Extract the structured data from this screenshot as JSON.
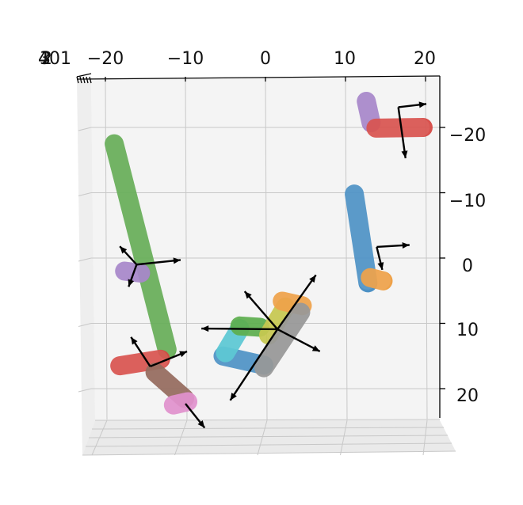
{
  "chart_data": {
    "type": "scatter",
    "projection": "3d",
    "title": "",
    "xlabel": "",
    "ylabel": "",
    "zlabel": "",
    "xlim": [
      -22,
      22
    ],
    "ylim": [
      -26,
      26
    ],
    "grid": true,
    "x_ticks": [
      "−20",
      "−10",
      "0",
      "10",
      "20"
    ],
    "y_ticks": [
      "−20",
      "−10",
      "0",
      "10",
      "20"
    ],
    "z_ticks_overlapping": [
      "4",
      "3",
      "2",
      "1",
      "0"
    ],
    "z_ticks_text": "401",
    "colors": {
      "green": "#5aa84a",
      "purple": "#a07cc6",
      "red": "#d64541",
      "brown": "#8c5e50",
      "pink": "#df88c9",
      "blue": "#3f89c2",
      "orange": "#ee9a3a",
      "cyan": "#4ec4d1",
      "olive": "#c3c440",
      "gray": "#8f8f8f",
      "lightgreen": "#4fa83e",
      "pane": "#f4f4f4"
    },
    "series": [
      {
        "color": "green",
        "x": [
          -18.9,
          -12.3
        ],
        "y": [
          -17.5,
          14.0
        ]
      },
      {
        "color": "purple",
        "x": [
          -17.6,
          -15.6
        ],
        "y": [
          2.0,
          2.3
        ]
      },
      {
        "color": "red",
        "x": [
          -18.2,
          -13.1
        ],
        "y": [
          16.5,
          15.5
        ]
      },
      {
        "color": "brown",
        "x": [
          -13.8,
          -10.1
        ],
        "y": [
          17.5,
          21.5
        ]
      },
      {
        "color": "pink",
        "x": [
          -11.5,
          -9.7
        ],
        "y": [
          22.5,
          22.0
        ]
      },
      {
        "color": "blue",
        "x": [
          -5.3,
          -0.2
        ],
        "y": [
          15.0,
          16.4
        ]
      },
      {
        "color": "cyan",
        "x": [
          -5.0,
          -3.2
        ],
        "y": [
          14.5,
          10.8
        ]
      },
      {
        "color": "lightgreen",
        "x": [
          -3.2,
          -0.7
        ],
        "y": [
          10.4,
          10.6
        ]
      },
      {
        "color": "olive",
        "x": [
          0.4,
          2.5
        ],
        "y": [
          11.8,
          7.5
        ]
      },
      {
        "color": "orange",
        "x": [
          2.1,
          4.6
        ],
        "y": [
          6.6,
          7.3
        ]
      },
      {
        "color": "gray",
        "x": [
          4.4,
          -0.2
        ],
        "y": [
          8.3,
          16.8
        ]
      },
      {
        "color": "blue",
        "x": [
          11.1,
          12.8
        ],
        "y": [
          -9.8,
          3.8
        ]
      },
      {
        "color": "orange",
        "x": [
          13.1,
          14.7
        ],
        "y": [
          3.0,
          3.5
        ]
      },
      {
        "color": "purple",
        "x": [
          12.6,
          13.2
        ],
        "y": [
          -24.0,
          -20.7
        ]
      },
      {
        "color": "red",
        "x": [
          13.8,
          19.7
        ],
        "y": [
          -19.9,
          -20.0
        ]
      }
    ],
    "orientation_markers": [
      {
        "origin": [
          -16.1,
          1.0
        ],
        "ends": [
          [
            -10.6,
            0.3
          ],
          [
            -18.2,
            -1.8
          ],
          [
            -17.1,
            4.4
          ]
        ]
      },
      {
        "origin": [
          -14.4,
          16.6
        ],
        "ends": [
          [
            -9.8,
            14.3
          ],
          [
            -16.8,
            12.1
          ]
        ]
      },
      {
        "origin": [
          -10.0,
          22.3
        ],
        "ends": [
          [
            -7.6,
            26.0
          ]
        ]
      },
      {
        "origin": [
          1.5,
          10.9
        ],
        "ends": [
          [
            6.3,
            2.6
          ],
          [
            -2.6,
            5.1
          ],
          [
            -8.0,
            10.8
          ],
          [
            6.8,
            14.3
          ],
          [
            -4.4,
            21.8
          ]
        ]
      },
      {
        "origin": [
          13.9,
          -1.7
        ],
        "ends": [
          [
            18.0,
            -2.0
          ],
          [
            14.6,
            1.8
          ]
        ]
      },
      {
        "origin": [
          16.6,
          -23.1
        ],
        "ends": [
          [
            20.1,
            -23.6
          ],
          [
            17.5,
            -15.3
          ]
        ]
      }
    ]
  }
}
